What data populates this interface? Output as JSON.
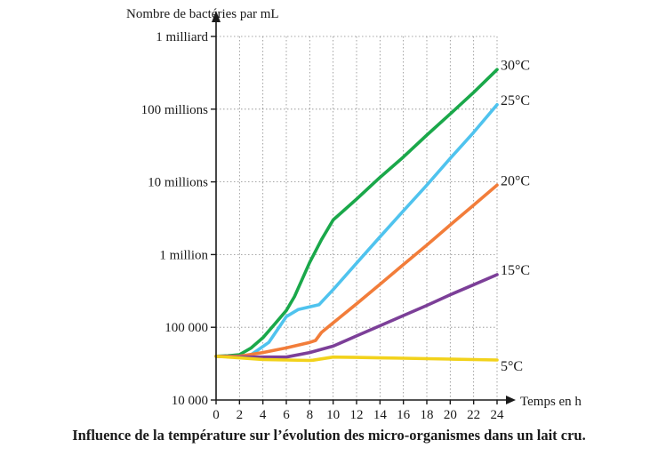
{
  "chart_data": {
    "type": "line",
    "title": "Influence de la température sur l’évolution des micro-organismes dans un lait cru.",
    "xlabel": "Temps en h",
    "ylabel": "Nombre de bactéries par mL",
    "yscale": "log",
    "xlim": [
      0,
      24
    ],
    "ylim": [
      10000,
      1000000000
    ],
    "grid": true,
    "x_ticks": [
      0,
      2,
      4,
      6,
      8,
      10,
      12,
      14,
      16,
      18,
      20,
      22,
      24
    ],
    "x_tick_labels": [
      "0",
      "2",
      "4",
      "6",
      "8",
      "10",
      "12",
      "14",
      "16",
      "18",
      "20",
      "22",
      "24"
    ],
    "y_ticks": [
      10000,
      100000,
      1000000,
      10000000,
      100000000,
      1000000000
    ],
    "y_tick_labels": [
      "10 000",
      "100 000",
      "1 million",
      "10 millions",
      "100 millions",
      "1 milliard"
    ],
    "series": [
      {
        "name": "30°C",
        "color": "#1aa84a",
        "points": [
          [
            0,
            40000
          ],
          [
            1,
            40500
          ],
          [
            2,
            42000
          ],
          [
            3,
            52000
          ],
          [
            4,
            72000
          ],
          [
            5,
            110000
          ],
          [
            6,
            170000
          ],
          [
            6.7,
            265000
          ],
          [
            8,
            780000
          ],
          [
            9,
            1600000
          ],
          [
            10,
            3000000
          ],
          [
            12,
            5800000
          ],
          [
            14,
            11500000
          ],
          [
            16,
            22000000
          ],
          [
            18,
            44000000
          ],
          [
            20,
            86000000
          ],
          [
            22,
            170000000
          ],
          [
            24,
            350000000
          ]
        ]
      },
      {
        "name": "25°C",
        "color": "#4fc3ee",
        "points": [
          [
            0,
            40000
          ],
          [
            2,
            40000
          ],
          [
            3,
            42000
          ],
          [
            4.5,
            62000
          ],
          [
            6,
            140000
          ],
          [
            7,
            175000
          ],
          [
            8.8,
            205000
          ],
          [
            10,
            330000
          ],
          [
            12,
            760000
          ],
          [
            14,
            1750000
          ],
          [
            16,
            4000000
          ],
          [
            18,
            9000000
          ],
          [
            20,
            21000000
          ],
          [
            22,
            48000000
          ],
          [
            24,
            115000000
          ]
        ]
      },
      {
        "name": "20°C",
        "color": "#f27d3a",
        "points": [
          [
            0,
            40000
          ],
          [
            2,
            40000
          ],
          [
            4,
            45000
          ],
          [
            6,
            52000
          ],
          [
            8,
            62000
          ],
          [
            8.5,
            66000
          ],
          [
            9,
            85000
          ],
          [
            10,
            115000
          ],
          [
            12,
            210000
          ],
          [
            14,
            390000
          ],
          [
            16,
            730000
          ],
          [
            18,
            1350000
          ],
          [
            20,
            2550000
          ],
          [
            22,
            4800000
          ],
          [
            24,
            9000000
          ]
        ]
      },
      {
        "name": "15°C",
        "color": "#7c3f98",
        "points": [
          [
            0,
            40000
          ],
          [
            2,
            39000
          ],
          [
            4,
            39000
          ],
          [
            6,
            39000
          ],
          [
            8,
            45000
          ],
          [
            10,
            55000
          ],
          [
            12,
            76000
          ],
          [
            14,
            105000
          ],
          [
            16,
            145000
          ],
          [
            18,
            200000
          ],
          [
            20,
            280000
          ],
          [
            22,
            385000
          ],
          [
            24,
            530000
          ]
        ]
      },
      {
        "name": "5°C",
        "color": "#f2d21b",
        "points": [
          [
            0,
            40000
          ],
          [
            2,
            38000
          ],
          [
            4,
            36000
          ],
          [
            6,
            35500
          ],
          [
            8,
            35000
          ],
          [
            8.3,
            35300
          ],
          [
            10,
            39000
          ],
          [
            12,
            38500
          ],
          [
            14,
            38000
          ],
          [
            16,
            37500
          ],
          [
            18,
            37000
          ],
          [
            20,
            36500
          ],
          [
            22,
            36000
          ],
          [
            24,
            35500
          ]
        ]
      }
    ]
  }
}
